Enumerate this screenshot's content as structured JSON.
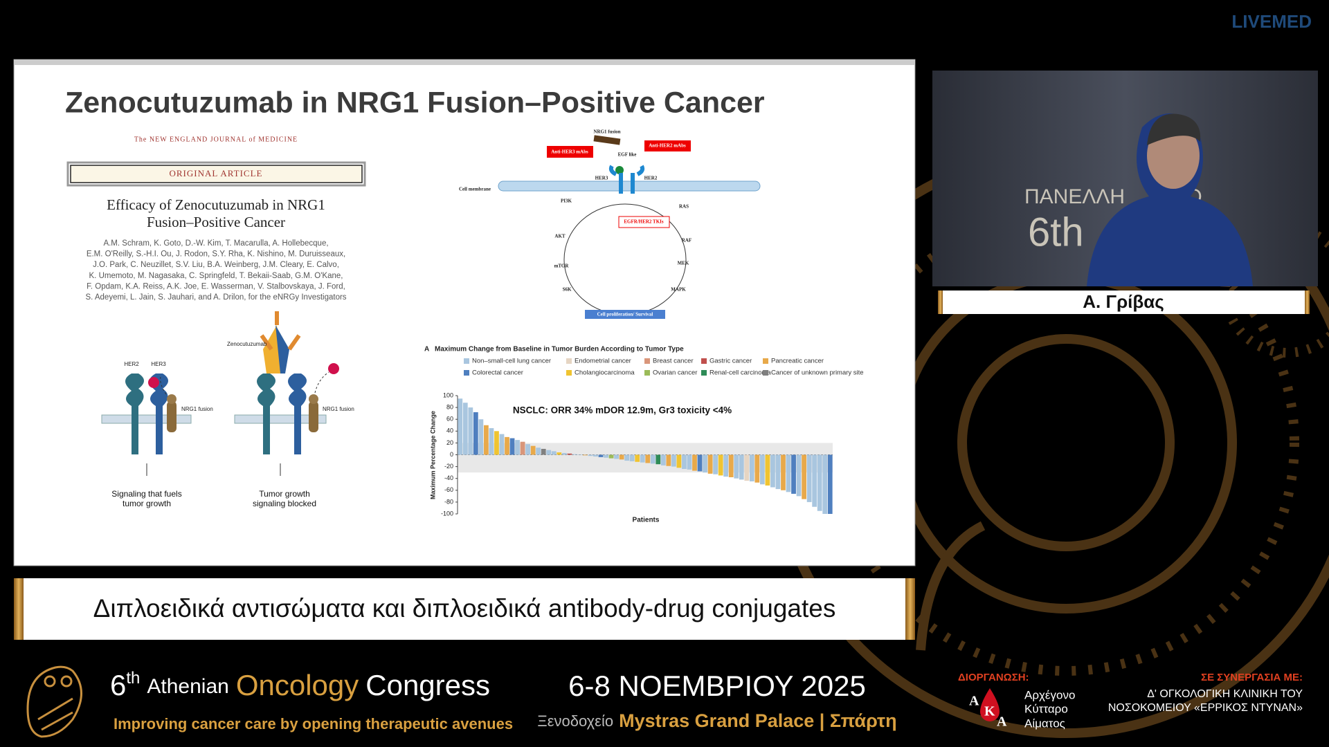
{
  "header": {
    "logo": "LIVEMED"
  },
  "slide": {
    "title": "Zenocutuzumab in NRG1 Fusion–Positive Cancer",
    "journal": "The NEW ENGLAND JOURNAL of MEDICINE",
    "article_type": "ORIGINAL ARTICLE",
    "article_title": [
      "Efficacy of Zenocutuzumab in NRG1",
      "Fusion–Positive Cancer"
    ],
    "authors": [
      "A.M. Schram, K. Goto, D.-W. Kim, T. Macarulla, A. Hollebecque,",
      "E.M. O'Reilly, S.-H.I. Ou, J. Rodon, S.Y. Rha, K. Nishino, M. Duruisseaux,",
      "J.O. Park, C. Neuzillet, S.V. Liu, B.A. Weinberg, J.M. Cleary, E. Calvo,",
      "K. Umemoto, M. Nagasaka, C. Springfeld, T. Bekaii-Saab, G.M. O'Kane,",
      "F. Opdam, K.A. Reiss, A.K. Joe, E. Wasserman, V. Stalbovskaya, J. Ford,",
      "S. Adeyemi, L. Jain, S. Jauhari, and A. Drilon, for the eNRGy Investigators"
    ],
    "mechanism": {
      "her2": "HER2",
      "her3": "HER3",
      "fusion": "NRG1 fusion",
      "drug": "Zenocutuzumab",
      "caption_left": [
        "Signaling that fuels",
        "tumor growth"
      ],
      "caption_right": [
        "Tumor growth",
        "signaling blocked"
      ]
    },
    "pathway": {
      "fusion": "NRG1 fusion",
      "anti_her3": "Anti-HER3 mAbs",
      "anti_her2": "Anti-HER2 mAbs",
      "egf": "EGF like",
      "her3": "HER3",
      "her2": "HER2",
      "membrane": "Cell membrane",
      "pi3k": "PI3K",
      "ras": "RAS",
      "tki": "EGFR/HER2 TKIs",
      "akt": "AKT",
      "raf": "RAF",
      "mtor": "mTOR",
      "mek": "MEK",
      "s6k": "S6K",
      "mapk": "MAPK",
      "outcome": "Cell proliferation/ Survival"
    },
    "waterfall": {
      "type": "bar",
      "panel": "A",
      "title": "Maximum Change from Baseline in Tumor Burden According to Tumor Type",
      "legend": [
        {
          "name": "Non–small-cell lung cancer",
          "color": "#a9c6df"
        },
        {
          "name": "Endometrial cancer",
          "color": "#e6d5c3"
        },
        {
          "name": "Breast cancer",
          "color": "#d9967a"
        },
        {
          "name": "Gastric cancer",
          "color": "#c0504d"
        },
        {
          "name": "Pancreatic cancer",
          "color": "#e8a94a"
        },
        {
          "name": "Colorectal cancer",
          "color": "#4f7fbf"
        },
        {
          "name": "Cholangiocarcinoma",
          "color": "#f0c431"
        },
        {
          "name": "Ovarian cancer",
          "color": "#9bbb59"
        },
        {
          "name": "Renal-cell carcinoma",
          "color": "#2e8b57"
        },
        {
          "name": "Cancer of unknown primary site",
          "color": "#808080"
        }
      ],
      "y_label": "Maximum Percentage Change",
      "x_label": "Patients",
      "annotation": "NSCLC: ORR 34% mDOR 12.9m, Gr3 toxicity <4%",
      "ylim": [
        -100,
        100
      ],
      "yticks": [
        100,
        80,
        60,
        40,
        20,
        0,
        -20,
        -40,
        -60,
        -80,
        -100
      ],
      "band": [
        -30,
        20
      ],
      "values": [
        95,
        88,
        80,
        72,
        60,
        50,
        45,
        40,
        35,
        30,
        28,
        25,
        22,
        18,
        15,
        12,
        10,
        8,
        6,
        4,
        3,
        2,
        1,
        0,
        -1,
        -2,
        -3,
        -4,
        -5,
        -6,
        -7,
        -8,
        -10,
        -11,
        -12,
        -13,
        -14,
        -15,
        -16,
        -18,
        -19,
        -20,
        -22,
        -24,
        -25,
        -27,
        -28,
        -30,
        -32,
        -33,
        -35,
        -37,
        -38,
        -40,
        -42,
        -44,
        -45,
        -47,
        -50,
        -52,
        -55,
        -58,
        -60,
        -63,
        -66,
        -70,
        -75,
        -80,
        -88,
        -95,
        -100,
        -100
      ],
      "colors": [
        "#a9c6df",
        "#a9c6df",
        "#a9c6df",
        "#4f7fbf",
        "#a9c6df",
        "#e8a94a",
        "#a9c6df",
        "#f0c431",
        "#a9c6df",
        "#e8a94a",
        "#4f7fbf",
        "#a9c6df",
        "#d9967a",
        "#a9c6df",
        "#e8a94a",
        "#a9c6df",
        "#808080",
        "#a9c6df",
        "#a9c6df",
        "#f0c431",
        "#a9c6df",
        "#c0504d",
        "#a9c6df",
        "#a9c6df",
        "#e8a94a",
        "#a9c6df",
        "#a9c6df",
        "#4f7fbf",
        "#a9c6df",
        "#9bbb59",
        "#a9c6df",
        "#e8a94a",
        "#a9c6df",
        "#a9c6df",
        "#f0c431",
        "#a9c6df",
        "#e8a94a",
        "#a9c6df",
        "#2e8b57",
        "#a9c6df",
        "#e8a94a",
        "#a9c6df",
        "#f0c431",
        "#a9c6df",
        "#a9c6df",
        "#e8a94a",
        "#4f7fbf",
        "#a9c6df",
        "#e8a94a",
        "#a9c6df",
        "#f0c431",
        "#a9c6df",
        "#e8a94a",
        "#a9c6df",
        "#a9c6df",
        "#e6d5c3",
        "#a9c6df",
        "#e8a94a",
        "#a9c6df",
        "#f0c431",
        "#a9c6df",
        "#a9c6df",
        "#e8a94a",
        "#a9c6df",
        "#4f7fbf",
        "#a9c6df",
        "#e8a94a",
        "#a9c6df",
        "#a9c6df",
        "#a9c6df",
        "#a9c6df",
        "#4f7fbf"
      ]
    }
  },
  "speaker": {
    "backdrop": [
      "ΠΑΝΕΛΛΗ",
      "ΙΟ",
      "6th"
    ],
    "name": "Α. Γρίβας"
  },
  "banner": "Διπλοειδικά αντισώματα και διπλοειδικά antibody-drug conjugates",
  "footer": {
    "ordinal": "6",
    "ordinal_suffix": "th",
    "name_pre": "Athenian",
    "name_highlight": "Oncology",
    "name_post": "Congress",
    "tagline": "Improving cancer care by opening therapeutic avenues",
    "dates": "6-8 ΝΟΕΜΒΡΙΟΥ 2025",
    "venue_pre": "Ξενοδοχείο",
    "venue": "Mystras Grand Palace | Σπάρτη",
    "organizer_label": "ΔΙΟΡΓΑΝΩΣΗ:",
    "organizer_logo": [
      "Α",
      "Κ",
      "Α"
    ],
    "organizer": [
      "Αρχέγονο",
      "Κύτταρο",
      "Αίματος"
    ],
    "partner_label": "ΣΕ ΣΥΝΕΡΓΑΣΙΑ ΜΕ:",
    "partner": [
      "Δ' ΟΓΚΟΛΟΓΙΚΗ ΚΛΙΝΙΚΗ ΤΟΥ",
      "ΝΟΣΟΚΟΜΕΙΟΥ «ΕΡΡΙΚΟΣ ΝΤΥΝΑΝ»"
    ]
  }
}
